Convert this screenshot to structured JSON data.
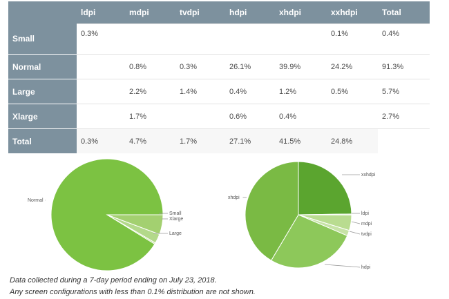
{
  "table": {
    "headers": [
      "",
      "ldpi",
      "mdpi",
      "tvdpi",
      "hdpi",
      "xhdpi",
      "xxhdpi",
      "Total"
    ],
    "rows": [
      {
        "label": "Small",
        "cells": [
          "0.3%",
          "",
          "",
          "",
          "",
          "0.1%",
          "0.4%"
        ]
      },
      {
        "label": "Normal",
        "cells": [
          "",
          "0.8%",
          "0.3%",
          "26.1%",
          "39.9%",
          "24.2%",
          "91.3%"
        ]
      },
      {
        "label": "Large",
        "cells": [
          "",
          "2.2%",
          "1.4%",
          "0.4%",
          "1.2%",
          "0.5%",
          "5.7%"
        ]
      },
      {
        "label": "Xlarge",
        "cells": [
          "",
          "1.7%",
          "",
          "0.6%",
          "0.4%",
          "",
          "2.7%"
        ]
      },
      {
        "label": "Total",
        "cells": [
          "0.3%",
          "4.7%",
          "1.7%",
          "27.1%",
          "41.5%",
          "24.8%",
          ""
        ]
      }
    ]
  },
  "chart_data": [
    {
      "type": "pie",
      "labels": [
        "Normal",
        "Small",
        "Xlarge",
        "Large"
      ],
      "values": [
        91.3,
        0.4,
        2.7,
        5.7
      ],
      "colors": [
        "#7cc242",
        "#c2e09a",
        "#b3d98a",
        "#a3d070"
      ]
    },
    {
      "type": "pie",
      "labels": [
        "xxhdpi",
        "ldpi",
        "mdpi",
        "tvdpi",
        "hdpi",
        "xhdpi"
      ],
      "values": [
        24.8,
        0.3,
        4.7,
        1.7,
        27.1,
        41.5
      ],
      "colors": [
        "#5ba52f",
        "#d2e8b4",
        "#b9dc90",
        "#c7e3a6",
        "#8dc85a",
        "#7aba44"
      ]
    }
  ],
  "footnotes": [
    "Data collected during a 7-day period ending on July 23, 2018.",
    "Any screen configurations with less than 0.1% distribution are not shown."
  ]
}
